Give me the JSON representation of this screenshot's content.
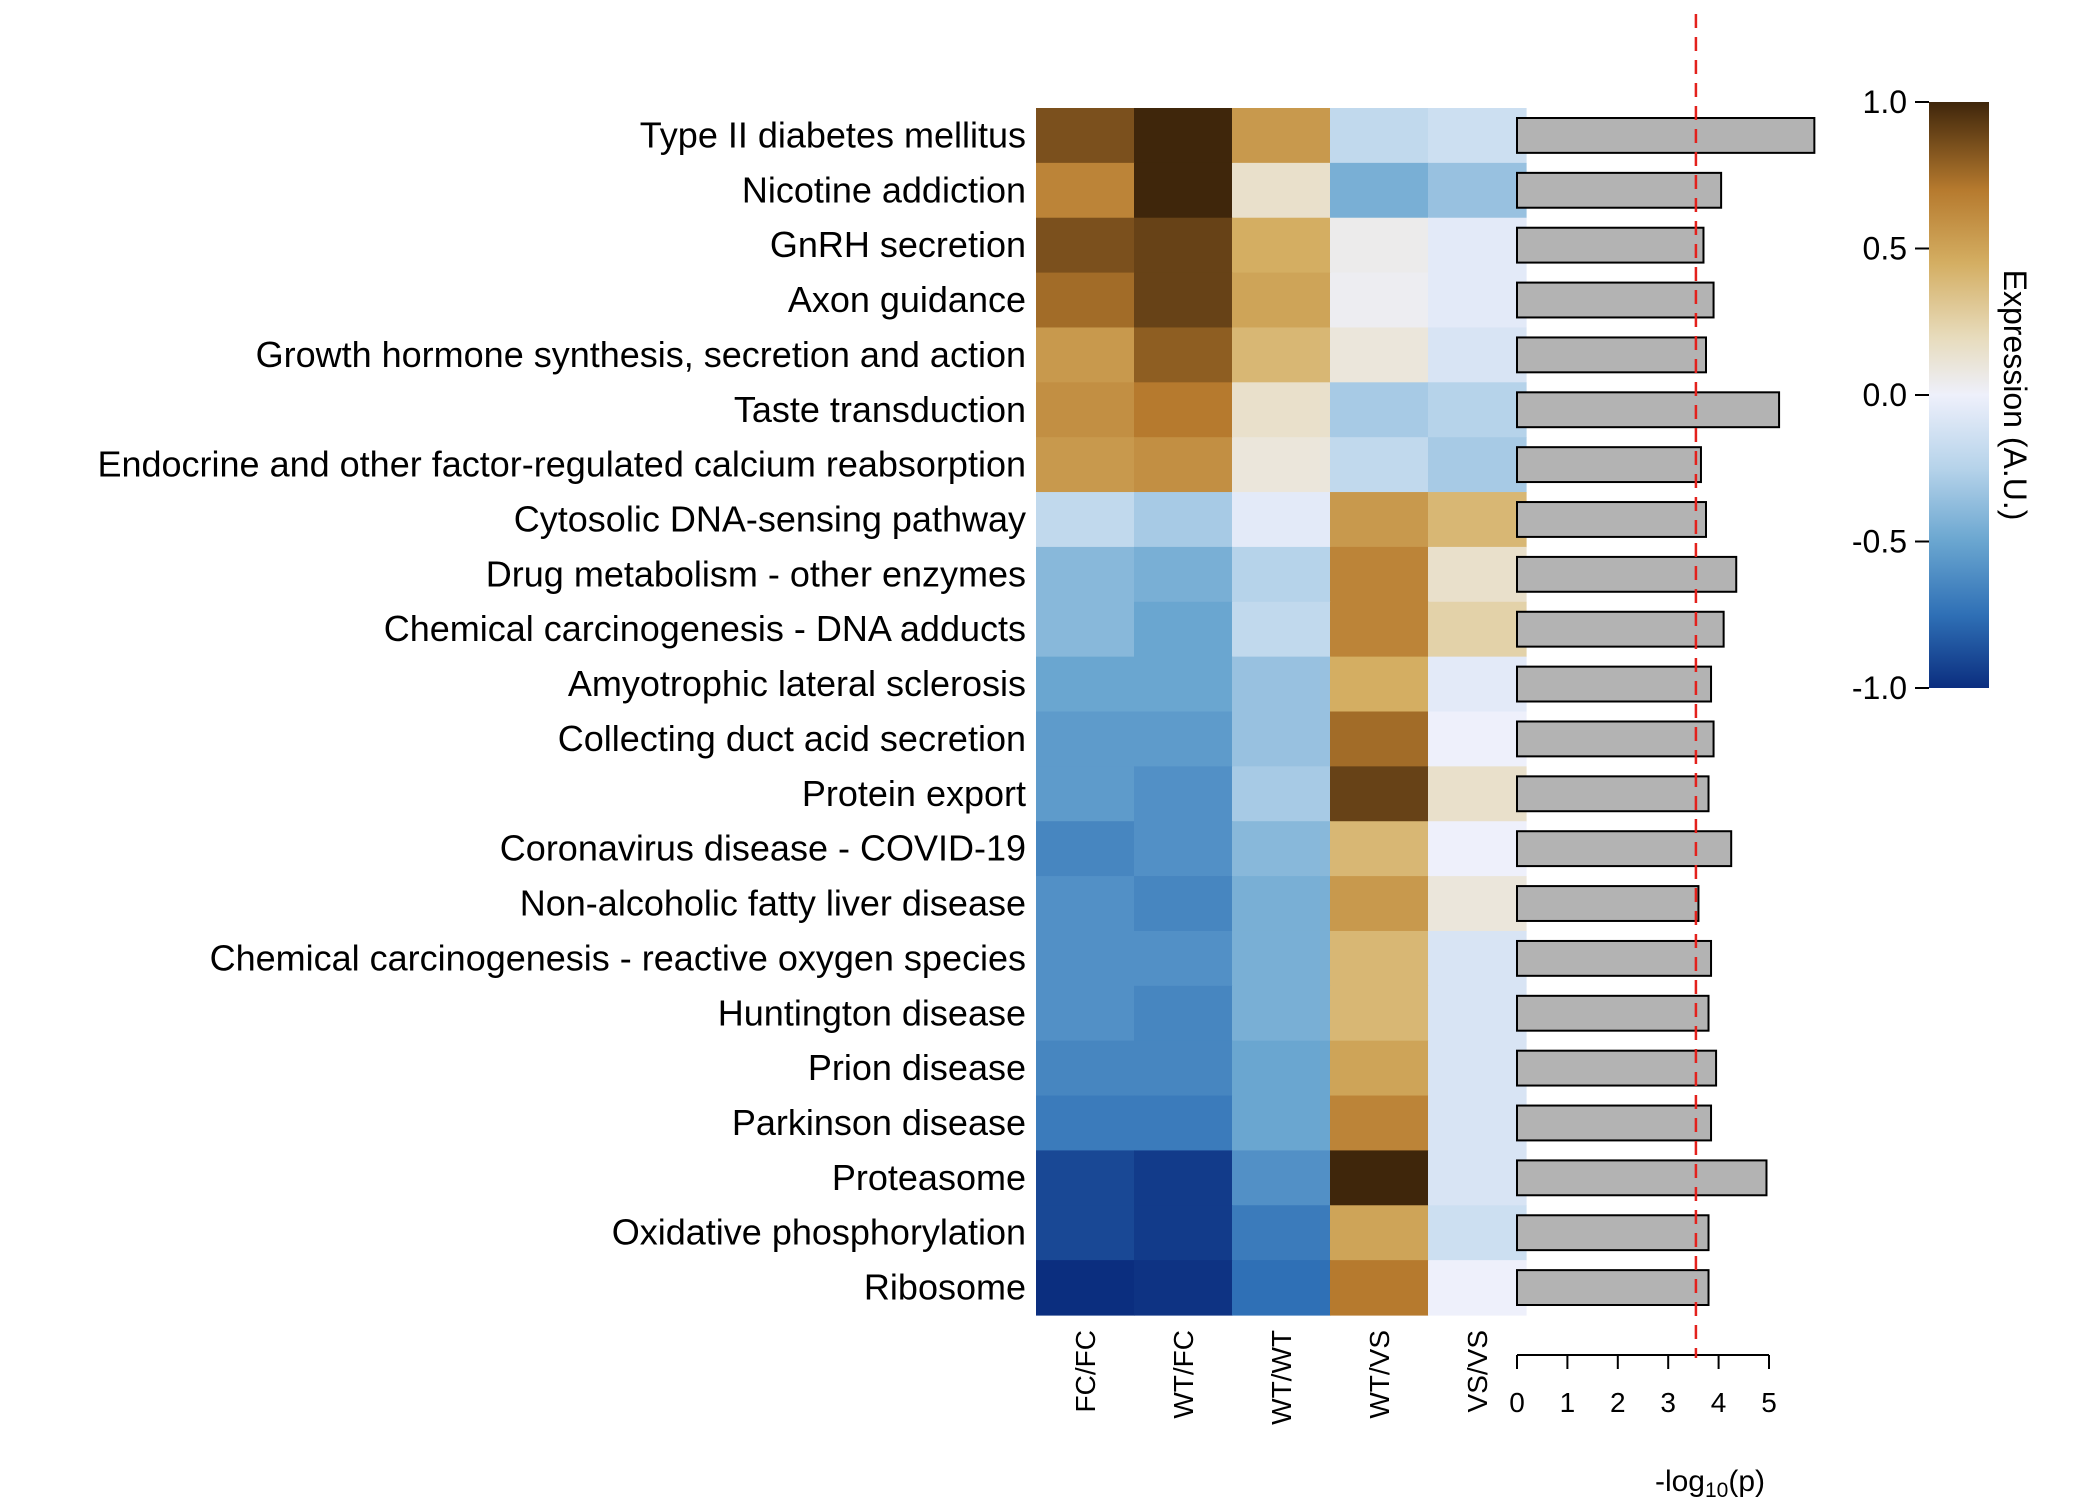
{
  "chart_data": {
    "type": "heatmap",
    "rows": [
      "Type II diabetes mellitus",
      "Nicotine addiction",
      "GnRH secretion",
      "Axon guidance",
      "Growth hormone synthesis, secretion and action",
      "Taste transduction",
      "Endocrine and other factor-regulated calcium reabsorption",
      "Cytosolic DNA-sensing pathway",
      "Drug metabolism - other enzymes",
      "Chemical carcinogenesis - DNA adducts",
      "Amyotrophic lateral sclerosis",
      "Collecting duct acid secretion",
      "Protein export",
      "Coronavirus disease - COVID-19",
      "Non-alcoholic fatty liver disease",
      "Chemical carcinogenesis - reactive oxygen species",
      "Huntington disease",
      "Prion disease",
      "Parkinson disease",
      "Proteasome",
      "Oxidative phosphorylation",
      "Ribosome"
    ],
    "columns": [
      "FC/FC",
      "WT/FC",
      "WT/WT",
      "WT/VS",
      "VS/VS"
    ],
    "values": [
      [
        0.85,
        1.0,
        0.55,
        -0.2,
        -0.15
      ],
      [
        0.65,
        1.0,
        0.15,
        -0.45,
        -0.35
      ],
      [
        0.85,
        0.9,
        0.45,
        0.05,
        -0.05
      ],
      [
        0.75,
        0.9,
        0.5,
        0.03,
        -0.05
      ],
      [
        0.55,
        0.8,
        0.4,
        0.1,
        -0.1
      ],
      [
        0.6,
        0.7,
        0.15,
        -0.3,
        -0.25
      ],
      [
        0.55,
        0.6,
        0.1,
        -0.2,
        -0.3
      ],
      [
        -0.2,
        -0.3,
        -0.05,
        0.55,
        0.4
      ],
      [
        -0.4,
        -0.45,
        -0.25,
        0.65,
        0.15
      ],
      [
        -0.4,
        -0.5,
        -0.2,
        0.65,
        0.25
      ],
      [
        -0.5,
        -0.5,
        -0.35,
        0.45,
        -0.05
      ],
      [
        -0.55,
        -0.55,
        -0.35,
        0.75,
        0.0
      ],
      [
        -0.55,
        -0.6,
        -0.3,
        0.9,
        0.15
      ],
      [
        -0.65,
        -0.6,
        -0.4,
        0.4,
        0.0
      ],
      [
        -0.6,
        -0.65,
        -0.45,
        0.55,
        0.1
      ],
      [
        -0.6,
        -0.6,
        -0.45,
        0.4,
        -0.1
      ],
      [
        -0.6,
        -0.65,
        -0.45,
        0.4,
        -0.1
      ],
      [
        -0.65,
        -0.65,
        -0.5,
        0.5,
        -0.1
      ],
      [
        -0.7,
        -0.7,
        -0.5,
        0.65,
        -0.1
      ],
      [
        -0.9,
        -0.95,
        -0.6,
        1.0,
        -0.1
      ],
      [
        -0.9,
        -0.95,
        -0.7,
        0.5,
        -0.15
      ],
      [
        -1.0,
        -0.98,
        -0.75,
        0.7,
        0.0
      ]
    ],
    "bar_values": [
      5.9,
      4.05,
      3.7,
      3.9,
      3.75,
      5.2,
      3.65,
      3.75,
      4.35,
      4.1,
      3.85,
      3.9,
      3.8,
      4.25,
      3.6,
      3.85,
      3.8,
      3.95,
      3.85,
      4.95,
      3.8,
      3.8
    ],
    "bar_axis": {
      "label_prefix": "-log",
      "label_subscript": "10",
      "label_suffix": "(p)",
      "ticks": [
        "0",
        "1",
        "2",
        "3",
        "4",
        "5"
      ],
      "range": [
        0,
        5.9
      ]
    },
    "threshold": 3.55,
    "colorbar": {
      "title": "Expression (A.U.)",
      "ticks": [
        "1.0",
        "0.5",
        "0.0",
        "-0.5",
        "-1.0"
      ],
      "range": [
        -1,
        1
      ]
    },
    "colors": {
      "stops": [
        [
          -1.0,
          "#0b2e7f"
        ],
        [
          -0.75,
          "#2f70b6"
        ],
        [
          -0.5,
          "#6aa6d0"
        ],
        [
          -0.25,
          "#b6d3ea"
        ],
        [
          0.0,
          "#eef0fb"
        ],
        [
          0.2,
          "#e7dbbb"
        ],
        [
          0.45,
          "#d4ae62"
        ],
        [
          0.7,
          "#b67a2e"
        ],
        [
          1.0,
          "#3f260b"
        ]
      ],
      "bar_fill": "#b3b3b3",
      "threshold_line": "#e3211c"
    }
  }
}
